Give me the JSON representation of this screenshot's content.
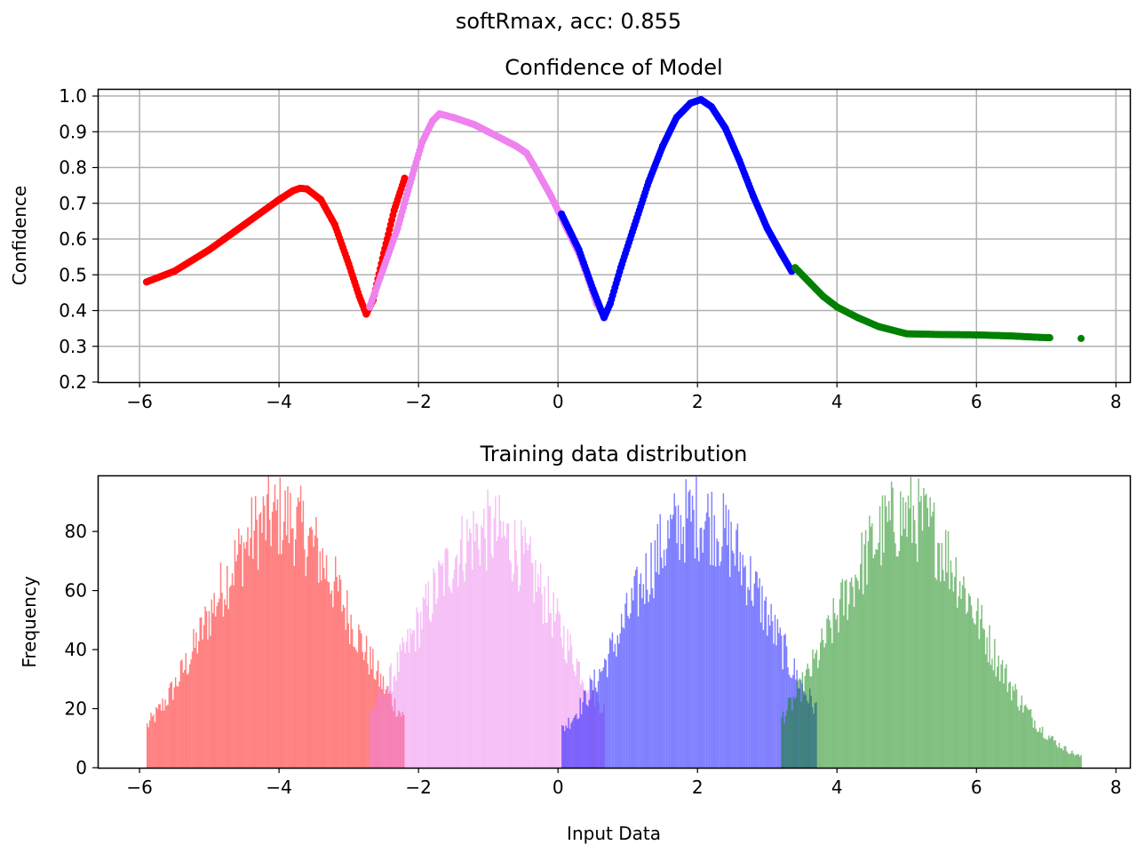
{
  "suptitle": "softRmax, acc: 0.855",
  "chart_data": [
    {
      "type": "scatter",
      "title": "Confidence of Model",
      "xlabel": "",
      "ylabel": "Confidence",
      "xlim": [
        -6.6,
        8.2
      ],
      "ylim": [
        0.2,
        1.02
      ],
      "xticks": [
        -6,
        -4,
        -2,
        0,
        2,
        4,
        6,
        8
      ],
      "xtick_labels": [
        "−6",
        "−4",
        "−2",
        "0",
        "2",
        "4",
        "6",
        "8"
      ],
      "yticks": [
        0.2,
        0.3,
        0.4,
        0.5,
        0.6,
        0.7,
        0.8,
        0.9,
        1.0
      ],
      "ytick_labels": [
        "0.2",
        "0.3",
        "0.4",
        "0.5",
        "0.6",
        "0.7",
        "0.8",
        "0.9",
        "1.0"
      ],
      "grid": true,
      "series": [
        {
          "color": "#ff0000",
          "x": [
            -5.9,
            -5.5,
            -5.0,
            -4.5,
            -4.0,
            -3.8,
            -3.7,
            -3.6,
            -3.4,
            -3.2,
            -3.0,
            -2.85,
            -2.75,
            -2.65,
            -2.5,
            -2.35,
            -2.2
          ],
          "y": [
            0.48,
            0.51,
            0.57,
            0.64,
            0.71,
            0.735,
            0.742,
            0.74,
            0.71,
            0.64,
            0.53,
            0.44,
            0.39,
            0.43,
            0.56,
            0.68,
            0.77
          ]
        },
        {
          "color": "#ee82ee",
          "x": [
            -2.7,
            -2.5,
            -2.3,
            -2.1,
            -1.95,
            -1.8,
            -1.7,
            -1.5,
            -1.2,
            -0.9,
            -0.6,
            -0.45,
            -0.3,
            -0.1,
            0.1,
            0.3,
            0.45,
            0.55,
            0.65
          ],
          "y": [
            0.41,
            0.52,
            0.63,
            0.77,
            0.87,
            0.93,
            0.95,
            0.94,
            0.92,
            0.89,
            0.86,
            0.84,
            0.79,
            0.72,
            0.64,
            0.56,
            0.48,
            0.42,
            0.39
          ]
        },
        {
          "color": "#0000ff",
          "x": [
            0.05,
            0.3,
            0.5,
            0.62,
            0.66,
            0.75,
            0.9,
            1.1,
            1.3,
            1.5,
            1.7,
            1.9,
            2.05,
            2.2,
            2.4,
            2.6,
            2.8,
            3.0,
            3.2,
            3.35
          ],
          "y": [
            0.67,
            0.57,
            0.46,
            0.4,
            0.38,
            0.42,
            0.52,
            0.64,
            0.76,
            0.86,
            0.94,
            0.98,
            0.99,
            0.97,
            0.91,
            0.82,
            0.72,
            0.63,
            0.56,
            0.51
          ]
        },
        {
          "color": "#008000",
          "x": [
            3.4,
            3.6,
            3.8,
            4.0,
            4.3,
            4.6,
            5.0,
            5.5,
            6.0,
            6.5,
            6.9,
            7.05,
            7.5
          ],
          "y": [
            0.52,
            0.48,
            0.44,
            0.41,
            0.38,
            0.355,
            0.335,
            0.333,
            0.332,
            0.329,
            0.325,
            0.324,
            0.322
          ]
        }
      ]
    },
    {
      "type": "bar",
      "title": "Training data distribution",
      "xlabel": "Input Data",
      "ylabel": "Frequency",
      "xlim": [
        -6.6,
        8.2
      ],
      "ylim": [
        0,
        99
      ],
      "xticks": [
        -6,
        -4,
        -2,
        0,
        2,
        4,
        6,
        8
      ],
      "xtick_labels": [
        "−6",
        "−4",
        "−2",
        "0",
        "2",
        "4",
        "6",
        "8"
      ],
      "yticks": [
        0,
        20,
        40,
        60,
        80
      ],
      "ytick_labels": [
        "0",
        "20",
        "40",
        "60",
        "80"
      ],
      "grid": false,
      "series": [
        {
          "color": "#ff0000",
          "alpha": 0.5,
          "center": -4.0,
          "peak": 85,
          "range": [
            -5.9,
            -2.2
          ]
        },
        {
          "color": "#ee82ee",
          "alpha": 0.5,
          "center": -1.0,
          "peak": 80,
          "range": [
            -2.7,
            0.65
          ]
        },
        {
          "color": "#0000ff",
          "alpha": 0.5,
          "center": 2.0,
          "peak": 85,
          "range": [
            0.05,
            3.7
          ]
        },
        {
          "color": "#008000",
          "alpha": 0.5,
          "center": 5.0,
          "peak": 85,
          "range": [
            3.2,
            7.5
          ]
        }
      ]
    }
  ]
}
